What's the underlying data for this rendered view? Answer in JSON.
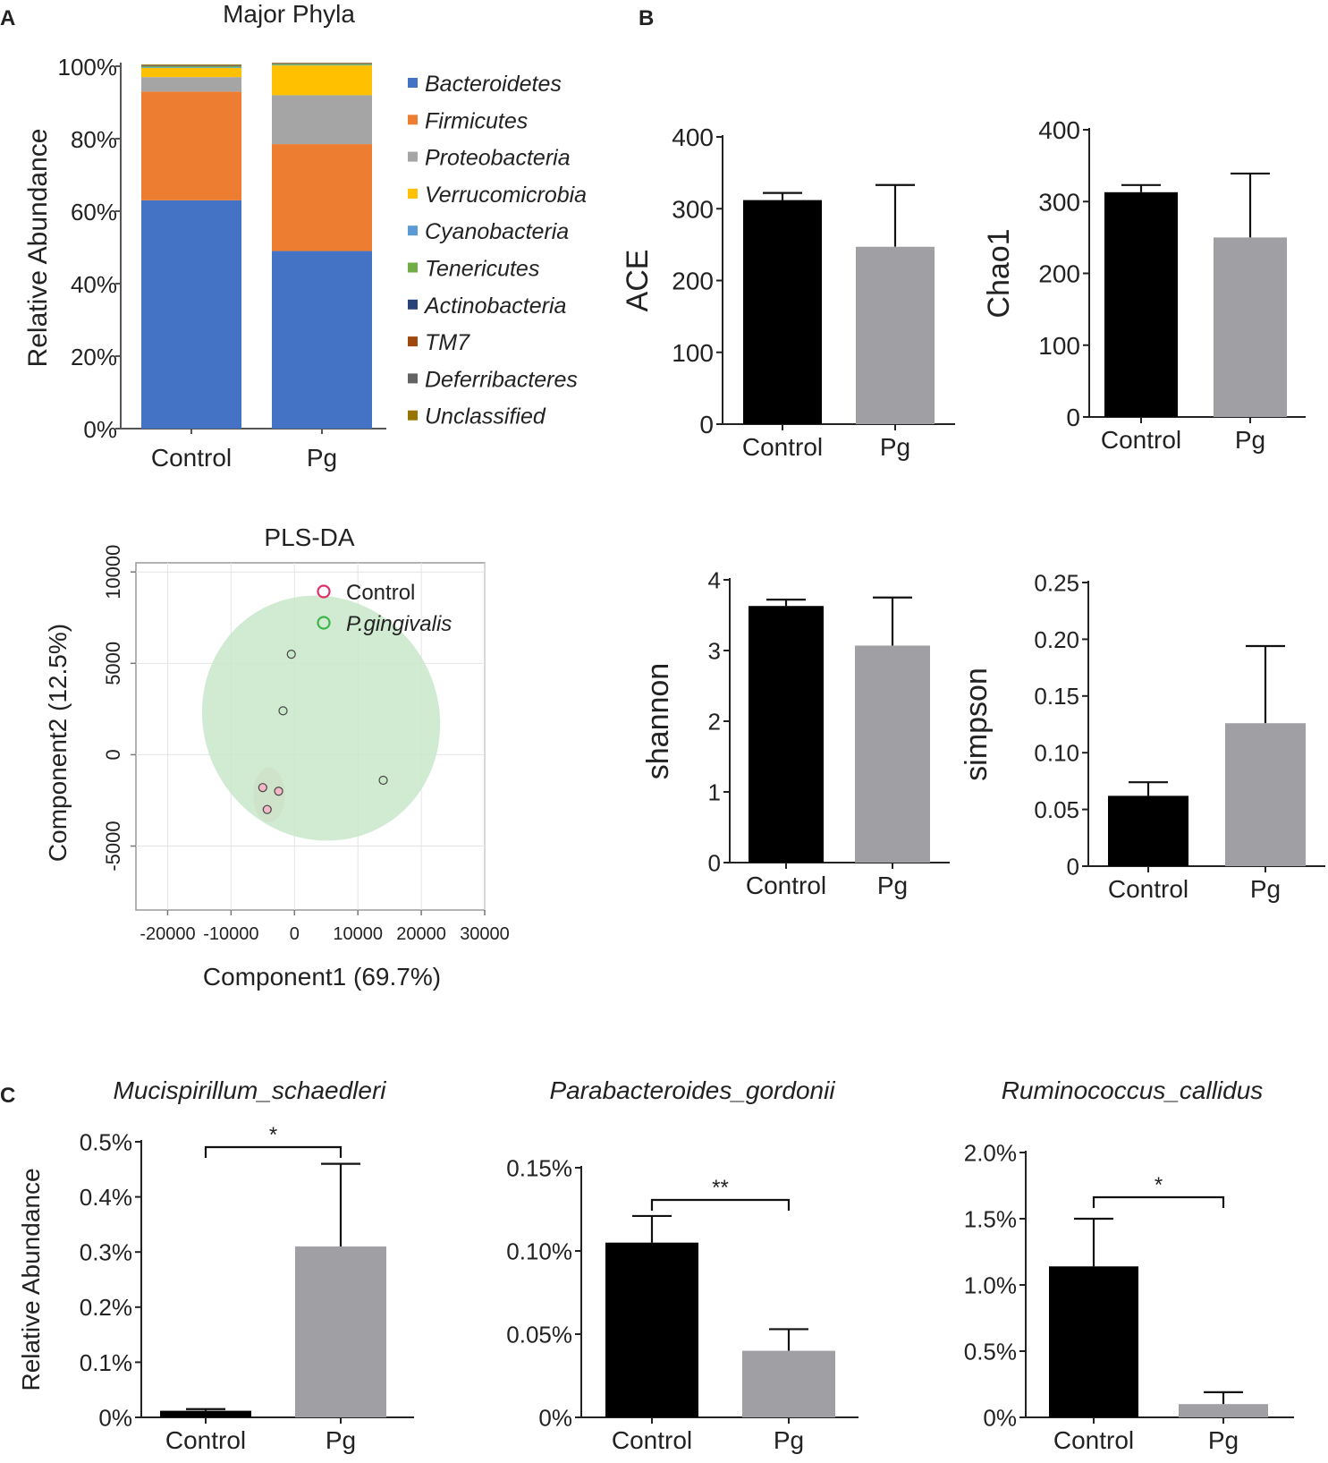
{
  "panels": {
    "A": "A",
    "B": "B",
    "C": "C"
  },
  "chart_data": [
    {
      "id": "major-phyla",
      "type": "bar",
      "stacked": true,
      "title": "Major Phyla",
      "ylabel": "Relative Abundance",
      "xlabel": "",
      "ylim": [
        0,
        100
      ],
      "yticks": [
        "0%",
        "20%",
        "40%",
        "60%",
        "80%",
        "100%"
      ],
      "categories": [
        "Control",
        "Pg"
      ],
      "series": [
        {
          "name": "Bacteroidetes",
          "color": "#4472C4",
          "values": [
            63,
            49
          ]
        },
        {
          "name": "Firmicutes",
          "color": "#ED7D31",
          "values": [
            30,
            29.5
          ]
        },
        {
          "name": "Proteobacteria",
          "color": "#A5A5A5",
          "values": [
            4,
            13.5
          ]
        },
        {
          "name": "Verrucomicrobia",
          "color": "#FFC000",
          "values": [
            2.5,
            8.2
          ]
        },
        {
          "name": "Cyanobacteria",
          "color": "#5B9BD5",
          "values": [
            0.2,
            0.1
          ]
        },
        {
          "name": "Tenericutes",
          "color": "#70AD47",
          "values": [
            0.3,
            0.3
          ]
        },
        {
          "name": "Actinobacteria",
          "color": "#264478",
          "values": [
            0.1,
            0.1
          ]
        },
        {
          "name": "TM7",
          "color": "#9E480E",
          "values": [
            0.1,
            0.1
          ]
        },
        {
          "name": "Deferribacteres",
          "color": "#636363",
          "values": [
            0.1,
            0.1
          ]
        },
        {
          "name": "Unclassified",
          "color": "#997300",
          "values": [
            0.2,
            0.1
          ]
        }
      ]
    },
    {
      "id": "pls-da",
      "type": "scatter",
      "title": "PLS-DA",
      "xlabel": "Component1 (69.7%)",
      "ylabel": "Component2 (12.5%)",
      "xlim": [
        -25000,
        30000
      ],
      "ylim": [
        -8500,
        10500
      ],
      "xticks": [
        -20000,
        -10000,
        0,
        10000,
        20000,
        30000
      ],
      "xtick_labels": [
        "-20000",
        "-10000",
        "0",
        "10000",
        "20000",
        "30000"
      ],
      "yticks": [
        -5000,
        0,
        5000,
        10000
      ],
      "ytick_labels": [
        "-5000",
        "0",
        "5000",
        "10000"
      ],
      "series": [
        {
          "name": "Control",
          "color": "#E0306A",
          "fill": "#F2B8C6",
          "points": [
            [
              -5000,
              -1800
            ],
            [
              -2500,
              -2000
            ],
            [
              -4300,
              -3000
            ]
          ],
          "ellipse": {
            "cx": -4000,
            "cy": -2200,
            "rx": 2500,
            "ry": 1500,
            "angle": 0
          }
        },
        {
          "name": "P.gingivalis",
          "color": "#3BB54A",
          "fill": "#C8E8C9",
          "points": [
            [
              -500,
              5500
            ],
            [
              -1800,
              2400
            ],
            [
              14000,
              -1400
            ]
          ],
          "ellipse": {
            "cx": 4200,
            "cy": 2000,
            "rx": 18500,
            "ry": 6800,
            "angle": -30
          }
        }
      ]
    },
    {
      "id": "ace",
      "type": "bar",
      "ylabel": "ACE",
      "categories": [
        "Control",
        "Pg"
      ],
      "values": [
        312,
        247
      ],
      "errors": [
        10,
        86
      ],
      "colors": [
        "#000000",
        "#A0A0A4"
      ],
      "ylim": [
        0,
        400
      ],
      "yticks": [
        0,
        100,
        200,
        300,
        400
      ],
      "ytick_labels": [
        "0",
        "100",
        "200",
        "300",
        "400"
      ]
    },
    {
      "id": "chao1",
      "type": "bar",
      "ylabel": "Chao1",
      "categories": [
        "Control",
        "Pg"
      ],
      "values": [
        313,
        250
      ],
      "errors": [
        10,
        89
      ],
      "colors": [
        "#000000",
        "#A0A0A4"
      ],
      "ylim": [
        0,
        400
      ],
      "yticks": [
        0,
        100,
        200,
        300,
        400
      ],
      "ytick_labels": [
        "0",
        "100",
        "200",
        "300",
        "400"
      ]
    },
    {
      "id": "shannon",
      "type": "bar",
      "ylabel": "shannon",
      "categories": [
        "Control",
        "Pg"
      ],
      "values": [
        3.63,
        3.07
      ],
      "errors": [
        0.09,
        0.68
      ],
      "colors": [
        "#000000",
        "#A0A0A4"
      ],
      "ylim": [
        0,
        4
      ],
      "yticks": [
        0,
        1,
        2,
        3,
        4
      ],
      "ytick_labels": [
        "0",
        "1",
        "2",
        "3",
        "4"
      ]
    },
    {
      "id": "simpson",
      "type": "bar",
      "ylabel": "simpson",
      "categories": [
        "Control",
        "Pg"
      ],
      "values": [
        0.062,
        0.126
      ],
      "errors": [
        0.012,
        0.068
      ],
      "colors": [
        "#000000",
        "#A0A0A4"
      ],
      "ylim": [
        0,
        0.25
      ],
      "yticks": [
        0,
        0.05,
        0.1,
        0.15,
        0.2,
        0.25
      ],
      "ytick_labels": [
        "0",
        "0.05",
        "0.10",
        "0.15",
        "0.20",
        "0.25"
      ]
    },
    {
      "id": "mucispirillum",
      "type": "bar",
      "title": "Mucispirillum_schaedleri",
      "ylabel": "Relative Abundance",
      "categories": [
        "Control",
        "Pg"
      ],
      "values": [
        0.012,
        0.31
      ],
      "errors": [
        0.003,
        0.15
      ],
      "colors": [
        "#000000",
        "#A0A0A4"
      ],
      "ylim": [
        0,
        0.5
      ],
      "yticks": [
        0,
        0.1,
        0.2,
        0.3,
        0.4,
        0.5
      ],
      "ytick_labels": [
        "0%",
        "0.1%",
        "0.2%",
        "0.3%",
        "0.4%",
        "0.5%"
      ],
      "significance": "*"
    },
    {
      "id": "parabacteroides",
      "type": "bar",
      "title": "Parabacteroides_gordonii",
      "ylabel": "",
      "categories": [
        "Control",
        "Pg"
      ],
      "values": [
        0.105,
        0.04
      ],
      "errors": [
        0.016,
        0.013
      ],
      "colors": [
        "#000000",
        "#A0A0A4"
      ],
      "ylim": [
        0,
        0.15
      ],
      "yticks": [
        0,
        0.05,
        0.1,
        0.15
      ],
      "ytick_labels": [
        "0%",
        "0.05%",
        "0.10%",
        "0.15%"
      ],
      "significance": "**"
    },
    {
      "id": "ruminococcus",
      "type": "bar",
      "title": "Ruminococcus_callidus",
      "ylabel": "",
      "categories": [
        "Control",
        "Pg"
      ],
      "values": [
        1.14,
        0.1
      ],
      "errors": [
        0.36,
        0.09
      ],
      "colors": [
        "#000000",
        "#A0A0A4"
      ],
      "ylim": [
        0,
        2.0
      ],
      "yticks": [
        0,
        0.5,
        1.0,
        1.5,
        2.0
      ],
      "ytick_labels": [
        "0%",
        "0.5%",
        "1.0%",
        "1.5%",
        "2.0%"
      ],
      "significance": "*"
    }
  ]
}
